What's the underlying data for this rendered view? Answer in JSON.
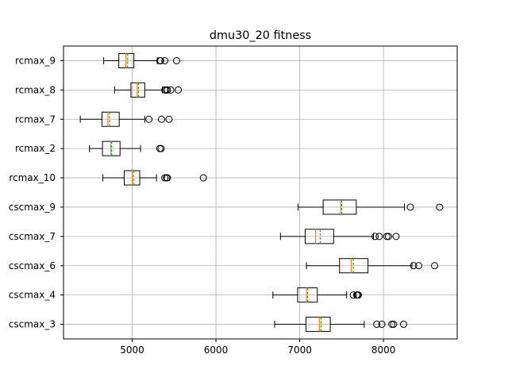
{
  "chart_data": {
    "type": "boxplot",
    "orientation": "horizontal",
    "title": "dmu30_20 fitness",
    "xlabel": "",
    "ylabel": "",
    "xlim": [
      4180,
      8880
    ],
    "xticks": [
      5000,
      6000,
      7000,
      8000
    ],
    "grid": true,
    "median_color": "#ff7f0e",
    "mean_color": "#2ca02c",
    "categories": [
      "cscmax_3",
      "cscmax_4",
      "cscmax_6",
      "cscmax_7",
      "cscmax_9",
      "rcmax_10",
      "rcmax_2",
      "rcmax_7",
      "rcmax_8",
      "rcmax_9"
    ],
    "series": [
      {
        "label": "cscmax_3",
        "whislo": 6700,
        "q1": 7075,
        "median": 7235,
        "mean": 7255,
        "q3": 7365,
        "whishi": 7770,
        "fliers": [
          7920,
          7980,
          8100,
          8120,
          8240
        ]
      },
      {
        "label": "cscmax_4",
        "whislo": 6680,
        "q1": 6975,
        "median": 7080,
        "mean": 7095,
        "q3": 7210,
        "whishi": 7560,
        "fliers": [
          7640,
          7680,
          7690,
          7700
        ]
      },
      {
        "label": "cscmax_6",
        "whislo": 7080,
        "q1": 7475,
        "median": 7615,
        "mean": 7640,
        "q3": 7815,
        "whishi": 8340,
        "fliers": [
          8360,
          8420,
          8610
        ]
      },
      {
        "label": "cscmax_7",
        "whislo": 6770,
        "q1": 7065,
        "median": 7190,
        "mean": 7245,
        "q3": 7405,
        "whishi": 7880,
        "fliers": [
          7900,
          7950,
          8040,
          8060,
          8150
        ]
      },
      {
        "label": "cscmax_9",
        "whislo": 6980,
        "q1": 7280,
        "median": 7490,
        "mean": 7500,
        "q3": 7675,
        "whishi": 8250,
        "fliers": [
          8320,
          8670
        ]
      },
      {
        "label": "rcmax_10",
        "whislo": 4650,
        "q1": 4905,
        "median": 5000,
        "mean": 5015,
        "q3": 5090,
        "whishi": 5290,
        "fliers": [
          5390,
          5410,
          5420,
          5850
        ]
      },
      {
        "label": "rcmax_2",
        "whislo": 4490,
        "q1": 4645,
        "median": 4745,
        "mean": 4755,
        "q3": 4855,
        "whishi": 5100,
        "fliers": [
          5330,
          5345
        ]
      },
      {
        "label": "rcmax_7",
        "whislo": 4380,
        "q1": 4640,
        "median": 4710,
        "mean": 4730,
        "q3": 4845,
        "whishi": 5150,
        "fliers": [
          5200,
          5350,
          5440
        ]
      },
      {
        "label": "rcmax_8",
        "whislo": 4790,
        "q1": 4985,
        "median": 5060,
        "mean": 5075,
        "q3": 5150,
        "whishi": 5360,
        "fliers": [
          5390,
          5405,
          5420,
          5460,
          5550
        ]
      },
      {
        "label": "rcmax_9",
        "whislo": 4660,
        "q1": 4840,
        "median": 4925,
        "mean": 4945,
        "q3": 5020,
        "whishi": 5300,
        "fliers": [
          5330,
          5340,
          5390,
          5530
        ]
      }
    ]
  }
}
